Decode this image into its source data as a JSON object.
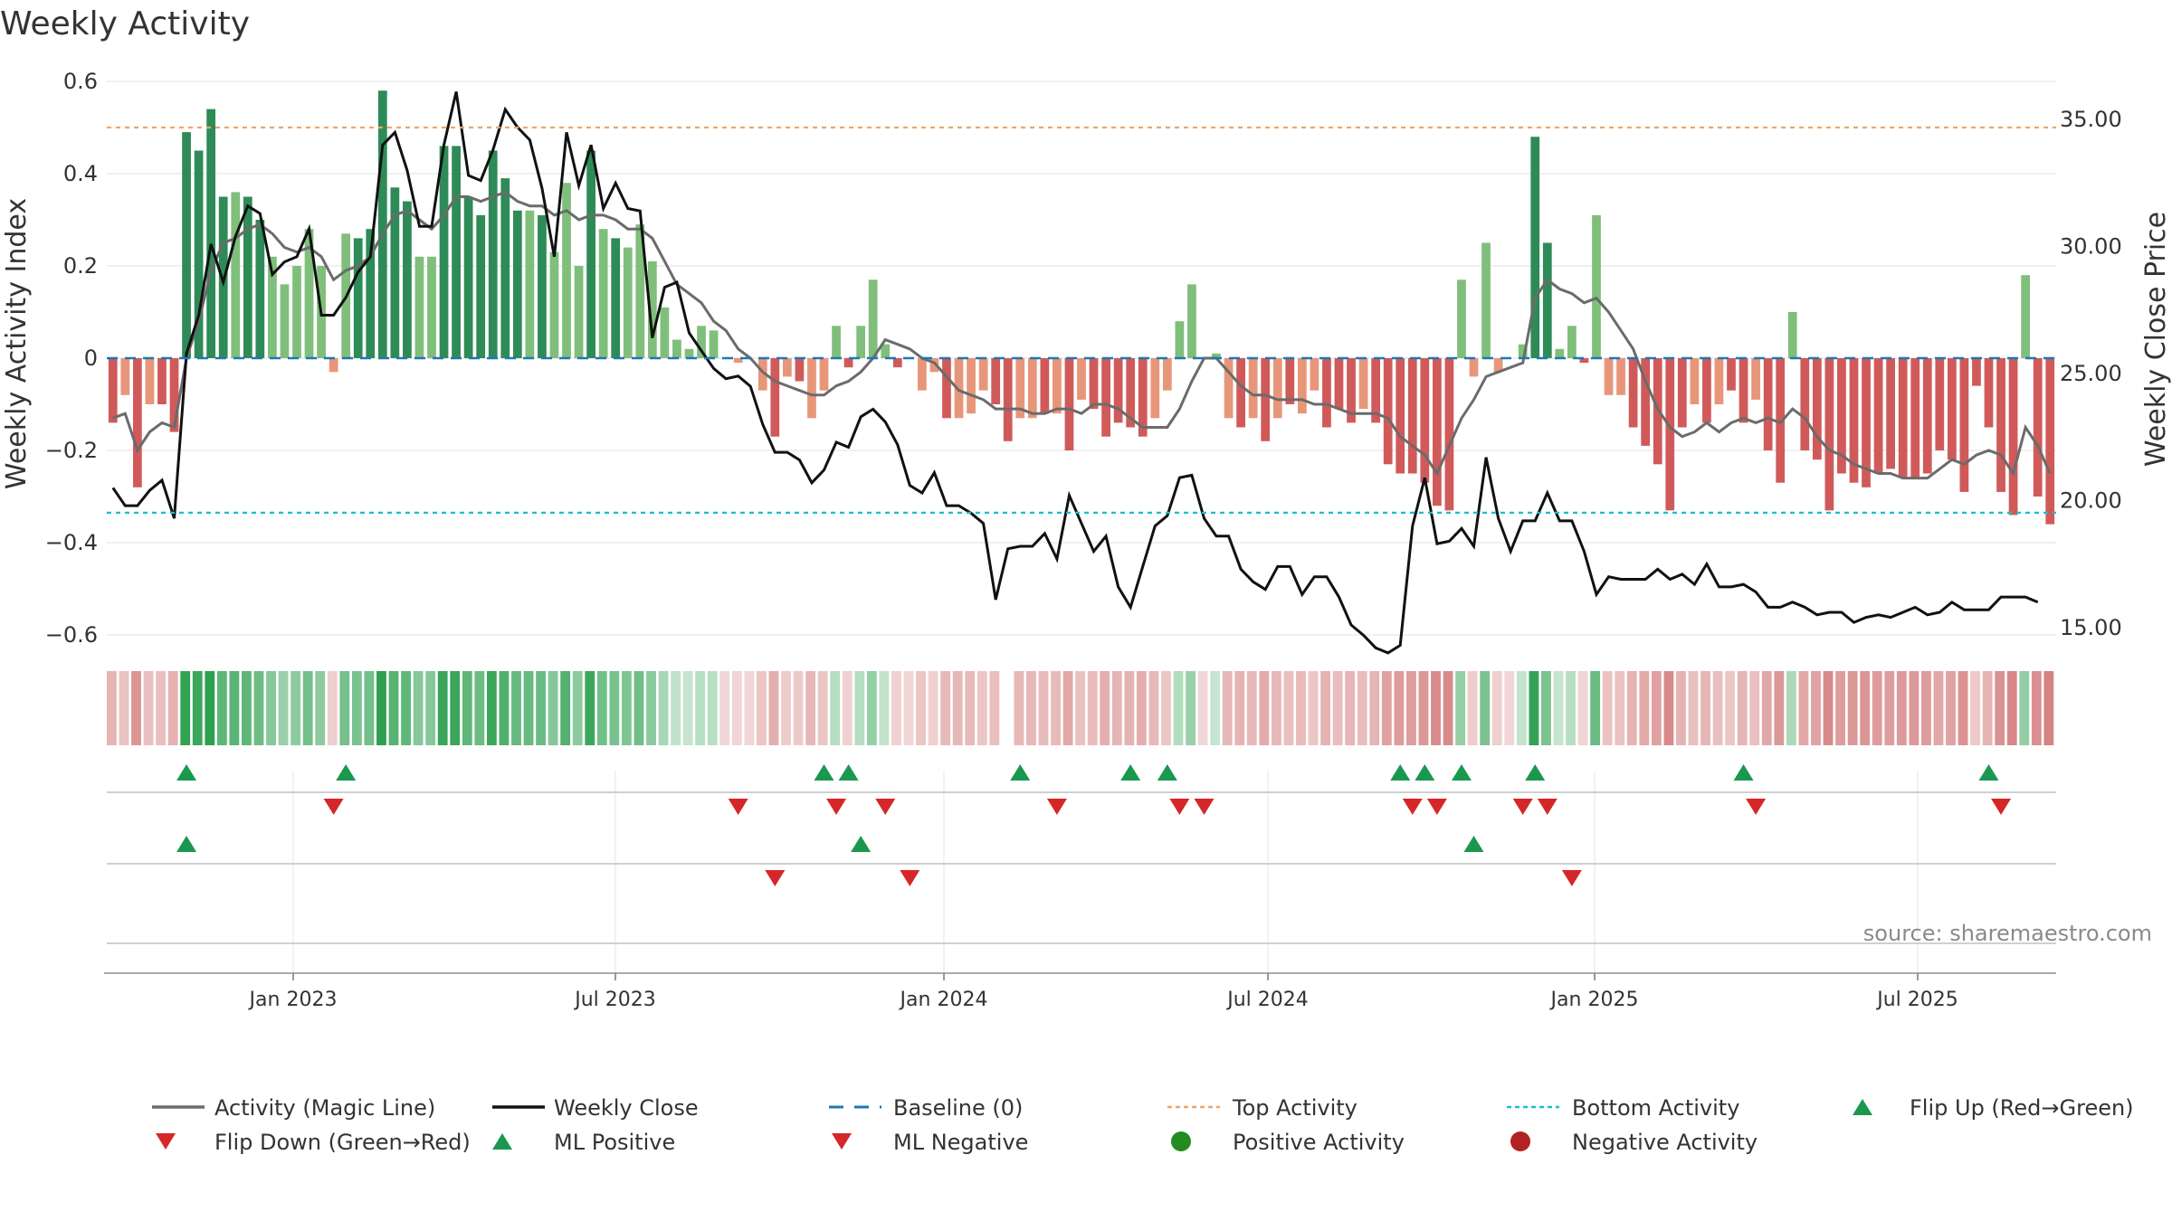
{
  "title": "Weekly Activity",
  "source": "source: sharemaestro.com",
  "colors": {
    "pos_dark": "#2e8b57",
    "pos_light": "#7fbf7b",
    "neg_dark": "#d05a5a",
    "neg_light": "#e8967a",
    "magic_line": "#6b6b6b",
    "close_line": "#111111",
    "baseline": "#1f77b4",
    "top": "#f4a460",
    "bottom": "#17becf",
    "flip_up": "#1a9850",
    "flip_down": "#d62728",
    "pos_dot": "#228b22",
    "neg_dot": "#b22222"
  },
  "chart_data": {
    "type": "bar+line",
    "title": "Weekly Activity",
    "ylabel": "Weekly Activity Index",
    "y2label": "Weekly Close Price",
    "ylim": [
      -0.6,
      0.6
    ],
    "y2lim": [
      13.0,
      38.0
    ],
    "yticks": [
      "0.6",
      "0.4",
      "0.2",
      "0",
      "−0.2",
      "−0.4",
      "−0.6"
    ],
    "y2ticks": [
      "35.00",
      "30.00",
      "25.00",
      "20.00",
      "15.00"
    ],
    "xticks": [
      "Jan 2023",
      "Jul 2023",
      "Jan 2024",
      "Jul 2024",
      "Jan 2025",
      "Jul 2025"
    ],
    "top_activity": 0.5,
    "bottom_activity": -0.335,
    "activity": [
      -0.14,
      -0.08,
      -0.28,
      -0.1,
      -0.1,
      -0.16,
      0.49,
      0.45,
      0.54,
      0.35,
      0.36,
      0.35,
      0.3,
      0.22,
      0.16,
      0.2,
      0.28,
      0.2,
      -0.03,
      0.27,
      0.26,
      0.28,
      0.58,
      0.37,
      0.34,
      0.22,
      0.22,
      0.46,
      0.46,
      0.35,
      0.31,
      0.45,
      0.39,
      0.32,
      0.32,
      0.31,
      0.23,
      0.38,
      0.2,
      0.45,
      0.28,
      0.26,
      0.24,
      0.29,
      0.21,
      0.11,
      0.04,
      0.02,
      0.07,
      0.06,
      0.0,
      -0.01,
      0.0,
      -0.07,
      -0.17,
      -0.04,
      -0.05,
      -0.13,
      -0.07,
      0.07,
      -0.02,
      0.07,
      0.17,
      0.03,
      -0.02,
      0.0,
      -0.07,
      -0.03,
      -0.13,
      -0.13,
      -0.12,
      -0.07,
      -0.1,
      -0.18,
      -0.13,
      -0.13,
      -0.12,
      -0.12,
      -0.2,
      -0.09,
      -0.11,
      -0.17,
      -0.14,
      -0.15,
      -0.17,
      -0.13,
      -0.07,
      0.08,
      0.16,
      0.0,
      0.01,
      -0.13,
      -0.15,
      -0.13,
      -0.18,
      -0.13,
      -0.1,
      -0.12,
      -0.07,
      -0.15,
      -0.11,
      -0.14,
      -0.11,
      -0.14,
      -0.23,
      -0.25,
      -0.25,
      -0.27,
      -0.32,
      -0.33,
      0.17,
      -0.04,
      0.25,
      -0.03,
      0.0,
      0.03,
      0.48,
      0.25,
      0.02,
      0.07,
      -0.01,
      0.31,
      -0.08,
      -0.08,
      -0.15,
      -0.19,
      -0.23,
      -0.33,
      -0.15,
      -0.1,
      -0.14,
      -0.1,
      -0.07,
      -0.14,
      -0.09,
      -0.2,
      -0.27,
      0.1,
      -0.2,
      -0.22,
      -0.33,
      -0.25,
      -0.27,
      -0.28,
      -0.25,
      -0.24,
      -0.26,
      -0.26,
      -0.25,
      -0.2,
      -0.22,
      -0.29,
      -0.06,
      -0.15,
      -0.29,
      -0.34,
      0.18,
      -0.3,
      -0.36
    ],
    "magic_line": [
      -0.13,
      -0.12,
      -0.2,
      -0.16,
      -0.14,
      -0.15,
      0.0,
      0.08,
      0.19,
      0.25,
      0.26,
      0.28,
      0.29,
      0.27,
      0.24,
      0.23,
      0.24,
      0.22,
      0.17,
      0.19,
      0.2,
      0.22,
      0.27,
      0.31,
      0.32,
      0.3,
      0.28,
      0.31,
      0.35,
      0.35,
      0.34,
      0.35,
      0.36,
      0.34,
      0.33,
      0.33,
      0.31,
      0.32,
      0.3,
      0.31,
      0.31,
      0.3,
      0.28,
      0.28,
      0.26,
      0.21,
      0.16,
      0.14,
      0.12,
      0.08,
      0.06,
      0.02,
      0.0,
      -0.03,
      -0.05,
      -0.06,
      -0.07,
      -0.08,
      -0.08,
      -0.06,
      -0.05,
      -0.03,
      0.0,
      0.04,
      0.03,
      0.02,
      0.0,
      -0.01,
      -0.04,
      -0.07,
      -0.08,
      -0.09,
      -0.11,
      -0.11,
      -0.11,
      -0.12,
      -0.12,
      -0.11,
      -0.11,
      -0.12,
      -0.1,
      -0.1,
      -0.11,
      -0.13,
      -0.15,
      -0.15,
      -0.15,
      -0.11,
      -0.05,
      0.0,
      0.0,
      -0.03,
      -0.06,
      -0.08,
      -0.08,
      -0.09,
      -0.09,
      -0.09,
      -0.1,
      -0.1,
      -0.11,
      -0.12,
      -0.12,
      -0.12,
      -0.13,
      -0.17,
      -0.19,
      -0.21,
      -0.25,
      -0.19,
      -0.13,
      -0.09,
      -0.04,
      -0.03,
      -0.02,
      -0.01,
      0.13,
      0.17,
      0.15,
      0.14,
      0.12,
      0.13,
      0.1,
      0.06,
      0.02,
      -0.05,
      -0.11,
      -0.15,
      -0.17,
      -0.16,
      -0.14,
      -0.16,
      -0.14,
      -0.13,
      -0.14,
      -0.13,
      -0.14,
      -0.11,
      -0.13,
      -0.17,
      -0.2,
      -0.21,
      -0.23,
      -0.24,
      -0.25,
      -0.25,
      -0.26,
      -0.26,
      -0.26,
      -0.24,
      -0.22,
      -0.23,
      -0.21,
      -0.2,
      -0.21,
      -0.25,
      -0.15,
      -0.19,
      -0.25
    ],
    "weekly_close": [
      20.5,
      19.8,
      19.8,
      20.4,
      20.8,
      19.3,
      25.8,
      27.3,
      30.1,
      28.6,
      30.4,
      31.6,
      31.3,
      28.9,
      29.4,
      29.6,
      30.7,
      27.3,
      27.3,
      28.0,
      29.0,
      29.6,
      34.0,
      34.5,
      33.0,
      30.8,
      30.8,
      34.0,
      36.1,
      32.8,
      32.6,
      33.8,
      35.4,
      34.7,
      34.2,
      32.3,
      29.6,
      34.5,
      32.4,
      34.0,
      31.5,
      32.5,
      31.5,
      31.4,
      26.4,
      28.4,
      28.6,
      26.6,
      25.9,
      25.2,
      24.8,
      24.9,
      24.5,
      23.0,
      21.9,
      21.9,
      21.6,
      20.7,
      21.2,
      22.3,
      22.1,
      23.3,
      23.6,
      23.1,
      22.2,
      20.6,
      20.3,
      21.1,
      19.8,
      19.8,
      19.5,
      19.1,
      16.1,
      18.1,
      18.2,
      18.2,
      18.7,
      17.7,
      20.2,
      19.1,
      18.0,
      18.6,
      16.6,
      15.8,
      17.4,
      19.0,
      19.4,
      20.9,
      21.0,
      19.3,
      18.6,
      18.6,
      17.3,
      16.8,
      16.5,
      17.4,
      17.4,
      16.3,
      17.0,
      17.0,
      16.2,
      15.1,
      14.7,
      14.2,
      14.0,
      14.3,
      19.0,
      20.9,
      18.3,
      18.4,
      18.9,
      18.2,
      21.7,
      19.3,
      18.0,
      19.2,
      19.2,
      20.3,
      19.2,
      19.2,
      18.0,
      16.3,
      17.0,
      16.9,
      16.9,
      16.9,
      17.3,
      16.9,
      17.1,
      16.7,
      17.5,
      16.6,
      16.6,
      16.7,
      16.4,
      15.8,
      15.8,
      16.0,
      15.8,
      15.5,
      15.6,
      15.6,
      15.2,
      15.4,
      15.5,
      15.4,
      15.6,
      15.8,
      15.5,
      15.6,
      16.0,
      15.7,
      15.7,
      15.7,
      16.2,
      16.2,
      16.2,
      16.0
    ],
    "heat_gaps": [
      73
    ],
    "flip_up_rows": [
      [
        6,
        19,
        58,
        60,
        74,
        83,
        86,
        105,
        107,
        110,
        116,
        133,
        153
      ],
      [
        6,
        61,
        111
      ]
    ],
    "flip_down_rows": [
      [
        18,
        51,
        59,
        63,
        77,
        87,
        89,
        106,
        108,
        115,
        117,
        134,
        154
      ],
      [
        54,
        65,
        119
      ]
    ]
  },
  "legend": [
    {
      "label": "Activity (Magic Line)",
      "key": "magic"
    },
    {
      "label": "Weekly Close",
      "key": "close"
    },
    {
      "label": "Baseline (0)",
      "key": "baseline"
    },
    {
      "label": "Top Activity",
      "key": "top"
    },
    {
      "label": "Bottom Activity",
      "key": "bottom"
    },
    {
      "label": "Flip Up (Red→Green)",
      "key": "flipup"
    },
    {
      "label": "Flip Down (Green→Red)",
      "key": "flipdown"
    },
    {
      "label": "ML Positive",
      "key": "mlpos"
    },
    {
      "label": "ML Negative",
      "key": "mlneg"
    },
    {
      "label": "Positive Activity",
      "key": "posdot"
    },
    {
      "label": "Negative Activity",
      "key": "negdot"
    }
  ]
}
